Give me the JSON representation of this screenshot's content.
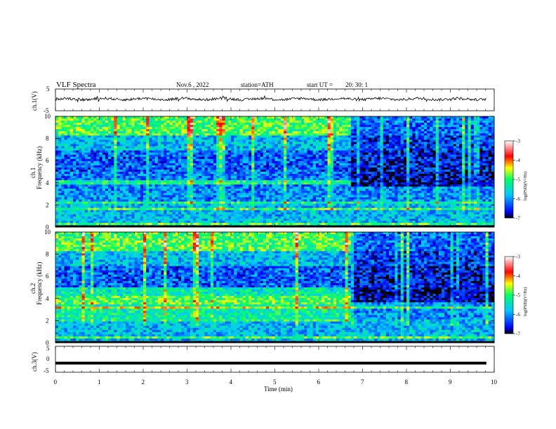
{
  "header": {
    "title": "VLF  Spectra",
    "date": "Nov.6  , 2022",
    "station": "station=ATH",
    "start_label": "start  UT  =",
    "start_time": "20: 30: 1"
  },
  "chart_data": [
    {
      "type": "line",
      "panel": "ch1-waveform",
      "ylabel": "ch.1(V)",
      "ylim": [
        -5,
        5
      ],
      "yticks": [
        "5",
        "-5"
      ],
      "xlim": [
        0,
        10
      ],
      "color": "#000000"
    },
    {
      "type": "heatmap",
      "panel": "ch1-spectrogram",
      "ylabel_line1": "ch.1",
      "ylabel_line2": "Frequency  (kHz)",
      "ylim": [
        0,
        10
      ],
      "yticks": [
        "0",
        "2",
        "4",
        "6",
        "8",
        "10"
      ],
      "xlim": [
        0,
        10
      ],
      "transition_time_min": 6.75,
      "colorbar": {
        "label": "log(PSD)(V²/Hz)",
        "range": [
          -7,
          -3
        ],
        "ticks": [
          "-3",
          "-4",
          "-5",
          "-6",
          "-7"
        ],
        "colors": [
          "#000000",
          "#0000ff",
          "#00c8ff",
          "#00ff66",
          "#ffff00",
          "#ff0000",
          "#ffffff"
        ]
      }
    },
    {
      "type": "heatmap",
      "panel": "ch2-spectrogram",
      "ylabel_line1": "ch.2",
      "ylabel_line2": "Frequency  (kHz)",
      "ylim": [
        0,
        10
      ],
      "yticks": [
        "0",
        "2",
        "4",
        "6",
        "8",
        "10"
      ],
      "xlim": [
        0,
        10
      ],
      "transition_time_min": 6.75,
      "colorbar": {
        "label": "log(PSD)(V²/Hz)",
        "range": [
          -7,
          -3
        ],
        "ticks": [
          "-3",
          "-4",
          "-5",
          "-6",
          "-7"
        ],
        "colors": [
          "#000000",
          "#0000ff",
          "#00c8ff",
          "#00ff66",
          "#ffff00",
          "#ff0000",
          "#ffffff"
        ]
      }
    },
    {
      "type": "line",
      "panel": "ch3-waveform",
      "ylabel": "ch.3(V)",
      "ylim": [
        -5,
        5
      ],
      "yticks": [
        "5",
        "0",
        "-5"
      ],
      "xlim": [
        0,
        10
      ],
      "approx_level_v": -1.5,
      "color": "#000000"
    }
  ],
  "xaxis": {
    "label": "Time  (min)",
    "ticks": [
      "0",
      "1",
      "2",
      "3",
      "4",
      "5",
      "6",
      "7",
      "8",
      "9",
      "10"
    ],
    "range": [
      0,
      10
    ]
  }
}
